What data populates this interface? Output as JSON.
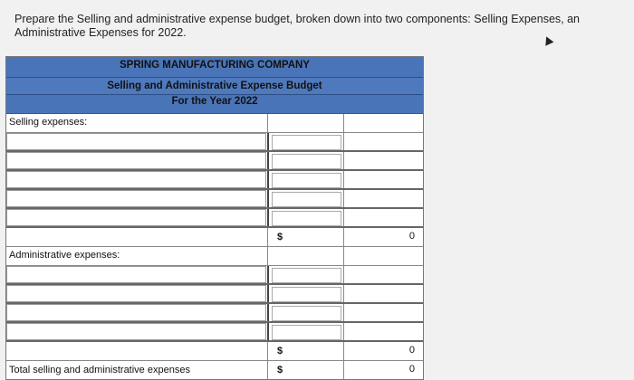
{
  "instructions": {
    "line1": "Prepare the Selling and administrative expense budget, broken down into two components: Selling Expenses, an",
    "line2": "Administrative Expenses for 2022."
  },
  "table": {
    "company": "SPRING MANUFACTURING COMPANY",
    "title": "Selling and Administrative Expense Budget",
    "period": "For the Year 2022",
    "selling_label": "Selling expenses:",
    "selling_currency": "$",
    "selling_total": "0",
    "admin_label": "Administrative expenses:",
    "admin_currency": "$",
    "admin_total": "0",
    "total_label": "Total selling and administrative expenses",
    "total_currency": "$",
    "total_value": "0"
  }
}
